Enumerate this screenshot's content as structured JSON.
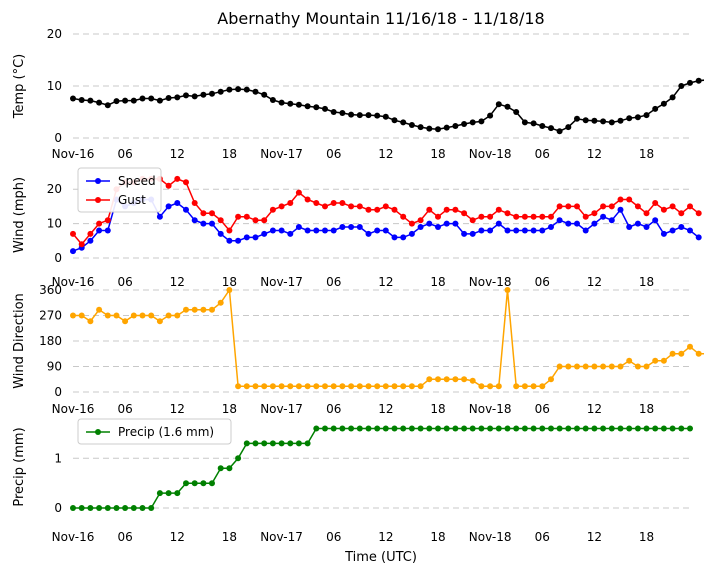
{
  "chart_data": {
    "type": "line",
    "title": "Abernathy Mountain 11/16/18 - 11/18/18",
    "xlabel": "Time (UTC)",
    "x_tick_labels": [
      "Nov-16",
      "06",
      "12",
      "18",
      "Nov-17",
      "06",
      "12",
      "18",
      "Nov-18",
      "06",
      "12",
      "18"
    ],
    "x_ticks_hours": [
      0,
      6,
      12,
      18,
      24,
      30,
      36,
      42,
      48,
      54,
      60,
      66
    ],
    "x_range_hours": [
      0,
      71
    ],
    "panels": [
      {
        "ylabel": "Temp ($^{\\circ}$C)",
        "ylabel_display": "Temp (°C)",
        "ylim": [
          0,
          20
        ],
        "yticks": [
          0,
          10,
          20
        ],
        "legend": "",
        "series": [
          {
            "name": "",
            "color": "#000000",
            "x_start": 0,
            "x_step": 1,
            "values": [
              7.6,
              7.3,
              7.2,
              6.8,
              6.3,
              7.1,
              7.2,
              7.2,
              7.6,
              7.6,
              7.2,
              7.7,
              7.8,
              8.2,
              8.0,
              8.3,
              8.5,
              8.9,
              9.3,
              9.4,
              9.3,
              8.9,
              8.3,
              7.3,
              6.8,
              6.6,
              6.4,
              6.1,
              5.9,
              5.6,
              5.0,
              4.8,
              4.5,
              4.4,
              4.4,
              4.3,
              4.1,
              3.4,
              3.0,
              2.5,
              2.1,
              1.8,
              1.7,
              2.0,
              2.3,
              2.7,
              3.0,
              3.2,
              4.3,
              6.5,
              6.0,
              5.0,
              3.0,
              2.8,
              2.3,
              1.9,
              1.3,
              2.1,
              3.7,
              3.4,
              3.3,
              3.2,
              3.0,
              3.3,
              3.8,
              4.0,
              4.4,
              5.6,
              6.6,
              7.8,
              10.0,
              10.6,
              11.0,
              11.2,
              11.2
            ]
          }
        ]
      },
      {
        "ylabel": "Wind (mph)",
        "ylim": [
          0,
          25
        ],
        "yticks": [
          0,
          10,
          20
        ],
        "legend": "top-left",
        "series": [
          {
            "name": "Speed",
            "color": "#0000ff",
            "x_start": 0,
            "x_step": 1,
            "values": [
              2,
              3,
              5,
              8,
              8,
              17,
              15,
              16,
              17,
              17,
              12,
              15,
              16,
              14,
              11,
              10,
              10,
              7,
              5,
              5,
              6,
              6,
              7,
              8,
              8,
              7,
              9,
              8,
              8,
              8,
              8,
              9,
              9,
              9,
              7,
              8,
              8,
              6,
              6,
              7,
              9,
              10,
              9,
              10,
              10,
              7,
              7,
              8,
              8,
              10,
              8,
              8,
              8,
              8,
              8,
              9,
              11,
              10,
              10,
              8,
              10,
              12,
              11,
              14,
              9,
              10,
              9,
              11,
              7,
              8,
              9,
              8,
              6
            ]
          },
          {
            "name": "Gust",
            "color": "#ff0000",
            "x_start": 0,
            "x_step": 1,
            "values": [
              7,
              4,
              7,
              10,
              11,
              20,
              22,
              22,
              23,
              23,
              23,
              21,
              23,
              22,
              16,
              13,
              13,
              11,
              8,
              12,
              12,
              11,
              11,
              14,
              15,
              16,
              19,
              17,
              16,
              15,
              16,
              16,
              15,
              15,
              14,
              14,
              15,
              14,
              12,
              10,
              11,
              14,
              12,
              14,
              14,
              13,
              11,
              12,
              12,
              14,
              13,
              12,
              12,
              12,
              12,
              12,
              15,
              15,
              15,
              12,
              13,
              15,
              15,
              17,
              17,
              15,
              13,
              16,
              14,
              15,
              13,
              15,
              13
            ]
          }
        ]
      },
      {
        "ylabel": "Wind Direction",
        "ylim": [
          0,
          360
        ],
        "yticks": [
          0,
          90,
          180,
          270,
          360
        ],
        "legend": "",
        "series": [
          {
            "name": "",
            "color": "#ffa500",
            "x_start": 0,
            "x_step": 1,
            "values": [
              270,
              270,
              250,
              290,
              270,
              270,
              250,
              270,
              270,
              270,
              250,
              270,
              270,
              290,
              290,
              290,
              290,
              315,
              360,
              20,
              20,
              20,
              20,
              20,
              20,
              20,
              20,
              20,
              20,
              20,
              20,
              20,
              20,
              20,
              20,
              20,
              20,
              20,
              20,
              20,
              20,
              45,
              45,
              45,
              45,
              45,
              40,
              20,
              20,
              20,
              360,
              20,
              20,
              20,
              20,
              45,
              90,
              90,
              90,
              90,
              90,
              90,
              90,
              90,
              110,
              90,
              90,
              110,
              110,
              135,
              135,
              160,
              135,
              135
            ]
          }
        ]
      },
      {
        "ylabel": "Precip (mm)",
        "ylim": [
          -0.1,
          1.75
        ],
        "yticks": [
          0,
          1
        ],
        "legend": "top-left",
        "series": [
          {
            "name": "Precip (1.6 mm)",
            "color": "#008000",
            "x_start": 0,
            "x_step": 1,
            "values": [
              0,
              0,
              0,
              0,
              0,
              0,
              0,
              0,
              0,
              0,
              0.3,
              0.3,
              0.3,
              0.5,
              0.5,
              0.5,
              0.5,
              0.8,
              0.8,
              1.0,
              1.3,
              1.3,
              1.3,
              1.3,
              1.3,
              1.3,
              1.3,
              1.3,
              1.6,
              1.6,
              1.6,
              1.6,
              1.6,
              1.6,
              1.6,
              1.6,
              1.6,
              1.6,
              1.6,
              1.6,
              1.6,
              1.6,
              1.6,
              1.6,
              1.6,
              1.6,
              1.6,
              1.6,
              1.6,
              1.6,
              1.6,
              1.6,
              1.6,
              1.6,
              1.6,
              1.6,
              1.6,
              1.6,
              1.6,
              1.6,
              1.6,
              1.6,
              1.6,
              1.6,
              1.6,
              1.6,
              1.6,
              1.6,
              1.6,
              1.6,
              1.6,
              1.6
            ]
          }
        ]
      }
    ]
  }
}
